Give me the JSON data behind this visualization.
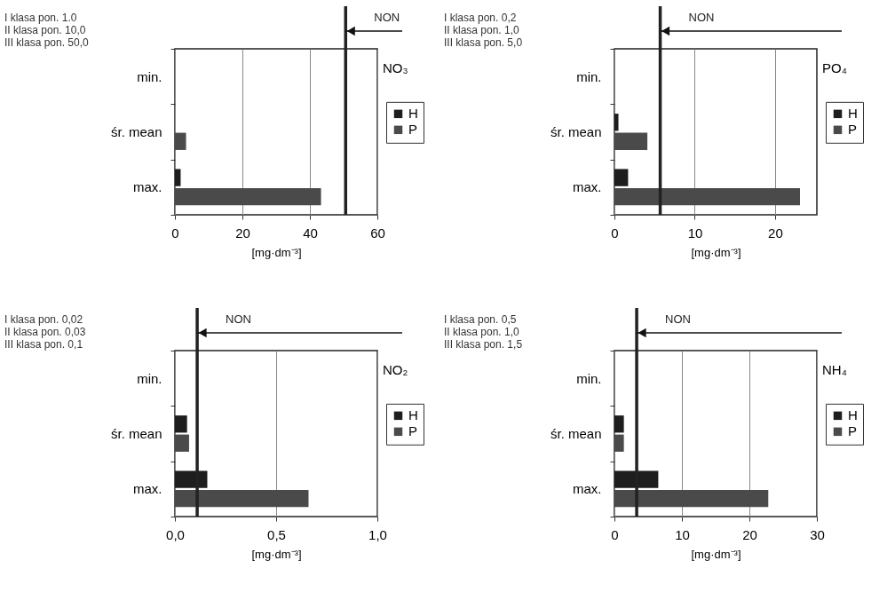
{
  "chart_data": [
    {
      "type": "bar",
      "orientation": "horizontal",
      "title": "NO₃",
      "xlabel": "[mg·dm⁻³]",
      "categories": [
        "min.",
        "śr. mean",
        "max."
      ],
      "series": [
        {
          "name": "H",
          "color": "#1e1e1e",
          "values": [
            0,
            0,
            1.7
          ]
        },
        {
          "name": "P",
          "color": "#4a4a4a",
          "values": [
            0,
            3.3,
            43.3
          ]
        }
      ],
      "xlim": [
        0,
        60
      ],
      "xticks": [
        0,
        20,
        40,
        60
      ],
      "grid": "x",
      "legend": "right",
      "ref_lines": [
        {
          "axis": "x",
          "value": 50.6,
          "label": "NON"
        }
      ],
      "annotations": [
        "I klasa pon. 1.0",
        "II klasa pon. 10,0",
        "III klasa pon. 50,0"
      ]
    },
    {
      "type": "bar",
      "orientation": "horizontal",
      "title": "PO₄",
      "xlabel": "[mg·dm⁻³]",
      "categories": [
        "min.",
        "śr. mean",
        "max."
      ],
      "series": [
        {
          "name": "H",
          "color": "#1e1e1e",
          "values": [
            0,
            0.5,
            1.7
          ]
        },
        {
          "name": "P",
          "color": "#4a4a4a",
          "values": [
            0,
            4.1,
            23.1
          ]
        }
      ],
      "xlim": [
        0,
        25.2
      ],
      "xticks": [
        0,
        10,
        20
      ],
      "grid": "x",
      "legend": "right",
      "ref_lines": [
        {
          "axis": "x",
          "value": 5.7,
          "label": "NON"
        }
      ],
      "annotations": [
        "I klasa pon. 0,2",
        "II klasa pon. 1,0",
        "III klasa pon. 5,0"
      ]
    },
    {
      "type": "bar",
      "orientation": "horizontal",
      "title": "NO₂",
      "xlabel": "[mg·dm⁻³]",
      "categories": [
        "min.",
        "śr. mean",
        "max."
      ],
      "series": [
        {
          "name": "H",
          "color": "#1e1e1e",
          "values": [
            0,
            0.06,
            0.16
          ]
        },
        {
          "name": "P",
          "color": "#4a4a4a",
          "values": [
            0,
            0.07,
            0.66
          ]
        }
      ],
      "xlim": [
        0,
        1
      ],
      "xticks": [
        {
          "value": 0,
          "label": "0,0"
        },
        {
          "value": 0.5,
          "label": "0,5"
        },
        {
          "value": 1,
          "label": "1,0"
        }
      ],
      "grid": "x",
      "legend": "right",
      "ref_lines": [
        {
          "axis": "x",
          "value": 0.11,
          "label": "NON"
        }
      ],
      "annotations": [
        "I klasa pon. 0,02",
        "II klasa pon. 0,03",
        "III klasa pon. 0,1"
      ]
    },
    {
      "type": "bar",
      "orientation": "horizontal",
      "title": "NH₄",
      "xlabel": "[mg·dm⁻³]",
      "categories": [
        "min.",
        "śr. mean",
        "max."
      ],
      "series": [
        {
          "name": "H",
          "color": "#1e1e1e",
          "values": [
            0,
            1.4,
            6.5
          ]
        },
        {
          "name": "P",
          "color": "#4a4a4a",
          "values": [
            0,
            1.4,
            22.8
          ]
        }
      ],
      "xlim": [
        0,
        30
      ],
      "xticks": [
        0,
        10,
        20,
        30
      ],
      "grid": "x",
      "legend": "right",
      "ref_lines": [
        {
          "axis": "x",
          "value": 3.3,
          "label": "NON"
        }
      ],
      "annotations": [
        "I klasa pon. 0,5",
        "II klasa pon. 1,0",
        "III klasa pon. 1,5"
      ]
    }
  ]
}
